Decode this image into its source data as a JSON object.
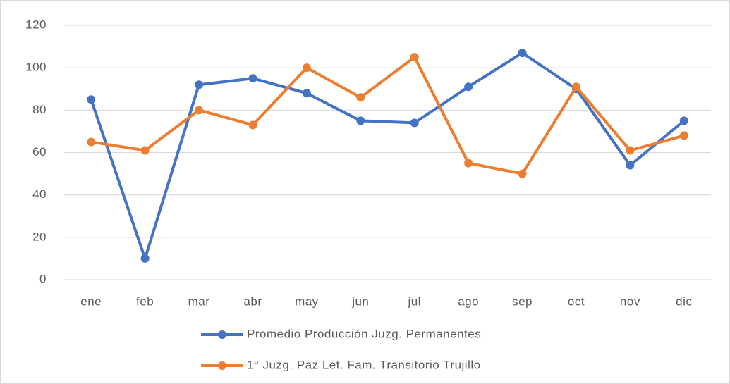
{
  "chart_data": {
    "type": "line",
    "categories": [
      "ene",
      "feb",
      "mar",
      "abr",
      "may",
      "jun",
      "jul",
      "ago",
      "sep",
      "oct",
      "nov",
      "dic"
    ],
    "series": [
      {
        "name": "Promedio Producción Juzg. Permanentes",
        "color": "#4472c4",
        "values": [
          85,
          10,
          92,
          95,
          88,
          75,
          74,
          91,
          107,
          90,
          54,
          75
        ]
      },
      {
        "name": "1° Juzg. Paz Let. Fam. Transitorio Trujillo",
        "color": "#ed7d31",
        "values": [
          65,
          61,
          80,
          73,
          100,
          86,
          105,
          55,
          50,
          91,
          61,
          68
        ]
      }
    ],
    "ylim": [
      0,
      120
    ],
    "yticks": [
      0,
      20,
      40,
      60,
      80,
      100,
      120
    ],
    "grid": true,
    "legend": "bottom"
  }
}
